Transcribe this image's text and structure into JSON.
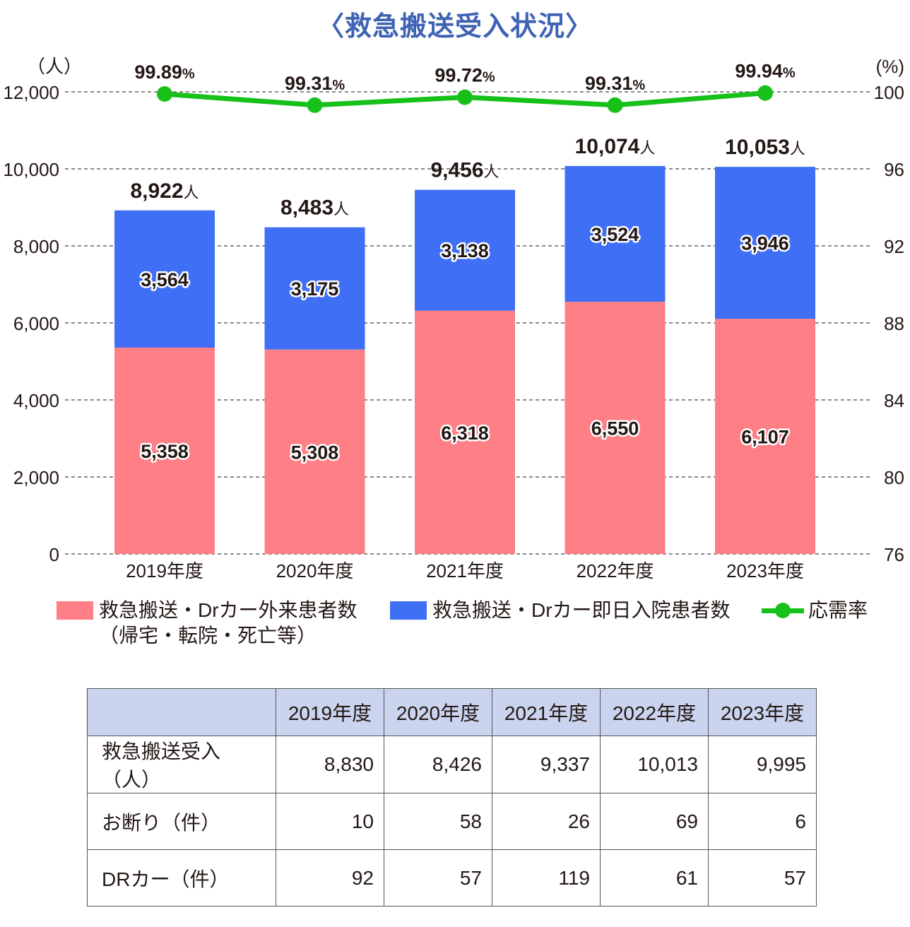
{
  "title": "〈救急搬送受入状況〉",
  "chart_data": {
    "type": "bar",
    "stacked": true,
    "categories": [
      "2019年度",
      "2020年度",
      "2021年度",
      "2022年度",
      "2023年度"
    ],
    "series": [
      {
        "name": "救急搬送・Drカー外来患者数",
        "name_line2": "（帰宅・転院・死亡等）",
        "values": [
          5358,
          5308,
          6318,
          6550,
          6107
        ],
        "labels": [
          "5,358",
          "5,308",
          "6,318",
          "6,550",
          "6,107"
        ],
        "color": "#FF7F86"
      },
      {
        "name": "救急搬送・Drカー即日入院患者数",
        "values": [
          3564,
          3175,
          3138,
          3524,
          3946
        ],
        "labels": [
          "3,564",
          "3,175",
          "3,138",
          "3,524",
          "3,946"
        ],
        "color": "#3F6FF5"
      }
    ],
    "totals": {
      "values": [
        8922,
        8483,
        9456,
        10074,
        10053
      ],
      "labels": [
        "8,922",
        "8,483",
        "9,456",
        "10,074",
        "10,053"
      ],
      "unit": "人"
    },
    "line": {
      "name": "応需率",
      "values": [
        99.89,
        99.31,
        99.72,
        99.31,
        99.94
      ],
      "labels": [
        "99.89",
        "99.31",
        "99.72",
        "99.31",
        "99.94"
      ],
      "unit": "%",
      "color": "#17C11A"
    },
    "y_left": {
      "label": "（人）",
      "ylim": [
        0,
        12000
      ],
      "ticks": [
        0,
        2000,
        4000,
        6000,
        8000,
        10000,
        12000
      ],
      "tick_labels": [
        "0",
        "2,000",
        "4,000",
        "6,000",
        "8,000",
        "10,000",
        "12,000"
      ]
    },
    "y_right": {
      "label": "(%)",
      "ylim": [
        76,
        100
      ],
      "ticks": [
        76,
        80,
        84,
        88,
        92,
        96,
        100
      ],
      "tick_labels": [
        "76",
        "80",
        "84",
        "88",
        "92",
        "96",
        "100"
      ]
    },
    "grid": "dashed horizontal",
    "legend_position": "bottom"
  },
  "table": {
    "headers": [
      "",
      "2019年度",
      "2020年度",
      "2021年度",
      "2022年度",
      "2023年度"
    ],
    "rows": [
      {
        "label": "救急搬送受入（人）",
        "values": [
          "8,830",
          "8,426",
          "9,337",
          "10,013",
          "9,995"
        ]
      },
      {
        "label": "お断り（件）",
        "values": [
          "10",
          "58",
          "26",
          "69",
          "6"
        ]
      },
      {
        "label": "DRカー（件）",
        "values": [
          "92",
          "57",
          "119",
          "61",
          "57"
        ]
      }
    ]
  }
}
